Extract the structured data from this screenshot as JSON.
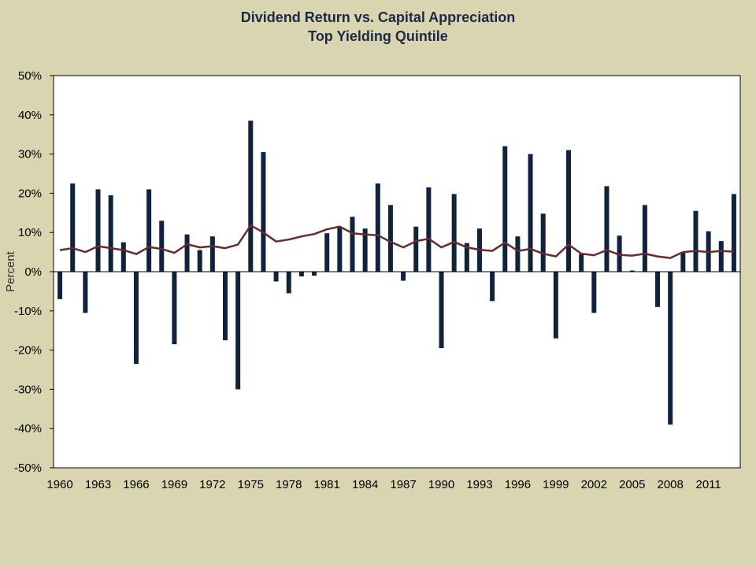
{
  "chart_data": {
    "type": "bar",
    "title": "Dividend Return vs. Capital Appreciation",
    "subtitle": "Top Yielding Quintile",
    "ylabel": "Percent",
    "xlabel": "",
    "ylim": [
      -50,
      50
    ],
    "yticks": [
      "50%",
      "40%",
      "30%",
      "20%",
      "10%",
      "0%",
      "-10%",
      "-20%",
      "-30%",
      "-40%",
      "-50%"
    ],
    "xticks": [
      "1960",
      "1963",
      "1966",
      "1969",
      "1972",
      "1975",
      "1978",
      "1981",
      "1984",
      "1987",
      "1990",
      "1993",
      "1996",
      "1999",
      "2002",
      "2005",
      "2008",
      "2011"
    ],
    "categories": [
      1960,
      1961,
      1962,
      1963,
      1964,
      1965,
      1966,
      1967,
      1968,
      1969,
      1970,
      1971,
      1972,
      1973,
      1974,
      1975,
      1976,
      1977,
      1978,
      1979,
      1980,
      1981,
      1982,
      1983,
      1984,
      1985,
      1986,
      1987,
      1988,
      1989,
      1990,
      1991,
      1992,
      1993,
      1994,
      1995,
      1996,
      1997,
      1998,
      1999,
      2000,
      2001,
      2002,
      2003,
      2004,
      2005,
      2006,
      2007,
      2008,
      2009,
      2010,
      2011,
      2012,
      2013
    ],
    "grid": false,
    "series": [
      {
        "kind": "bar",
        "color": "#0f2340",
        "values": [
          -7,
          22.5,
          -10.5,
          21,
          19.5,
          7.5,
          -23.5,
          21,
          13,
          -18.5,
          9.5,
          5.5,
          9,
          -17.5,
          -30,
          38.5,
          30.5,
          -2.5,
          -5.5,
          -1.2,
          -1,
          9.8,
          11.5,
          14,
          11,
          22.5,
          17,
          -2.3,
          11.5,
          21.5,
          -19.5,
          19.8,
          7.3,
          11,
          -7.5,
          32,
          9,
          30,
          14.8,
          -17,
          31,
          4.5,
          -10.5,
          21.8,
          9.2,
          0.3,
          17,
          -9,
          -39,
          5,
          15.5,
          10.3,
          7.8,
          19.8
        ]
      },
      {
        "kind": "line",
        "color": "#6b2a2a",
        "values": [
          5.5,
          6,
          5,
          6.5,
          6,
          5.5,
          4.5,
          6.3,
          5.8,
          4.8,
          7,
          6.2,
          6.5,
          6,
          6.9,
          11.8,
          10,
          7.7,
          8.2,
          9,
          9.6,
          10.8,
          11.5,
          9.8,
          9.5,
          9.3,
          7.6,
          6.2,
          7.8,
          8.4,
          6.2,
          7.6,
          6.2,
          5.6,
          5.3,
          7.4,
          5.3,
          5.8,
          4.6,
          3.9,
          6.9,
          4.6,
          4.2,
          5.5,
          4.3,
          4.1,
          4.6,
          3.9,
          3.5,
          5,
          5.3,
          5,
          5.3,
          5.1
        ]
      }
    ]
  }
}
